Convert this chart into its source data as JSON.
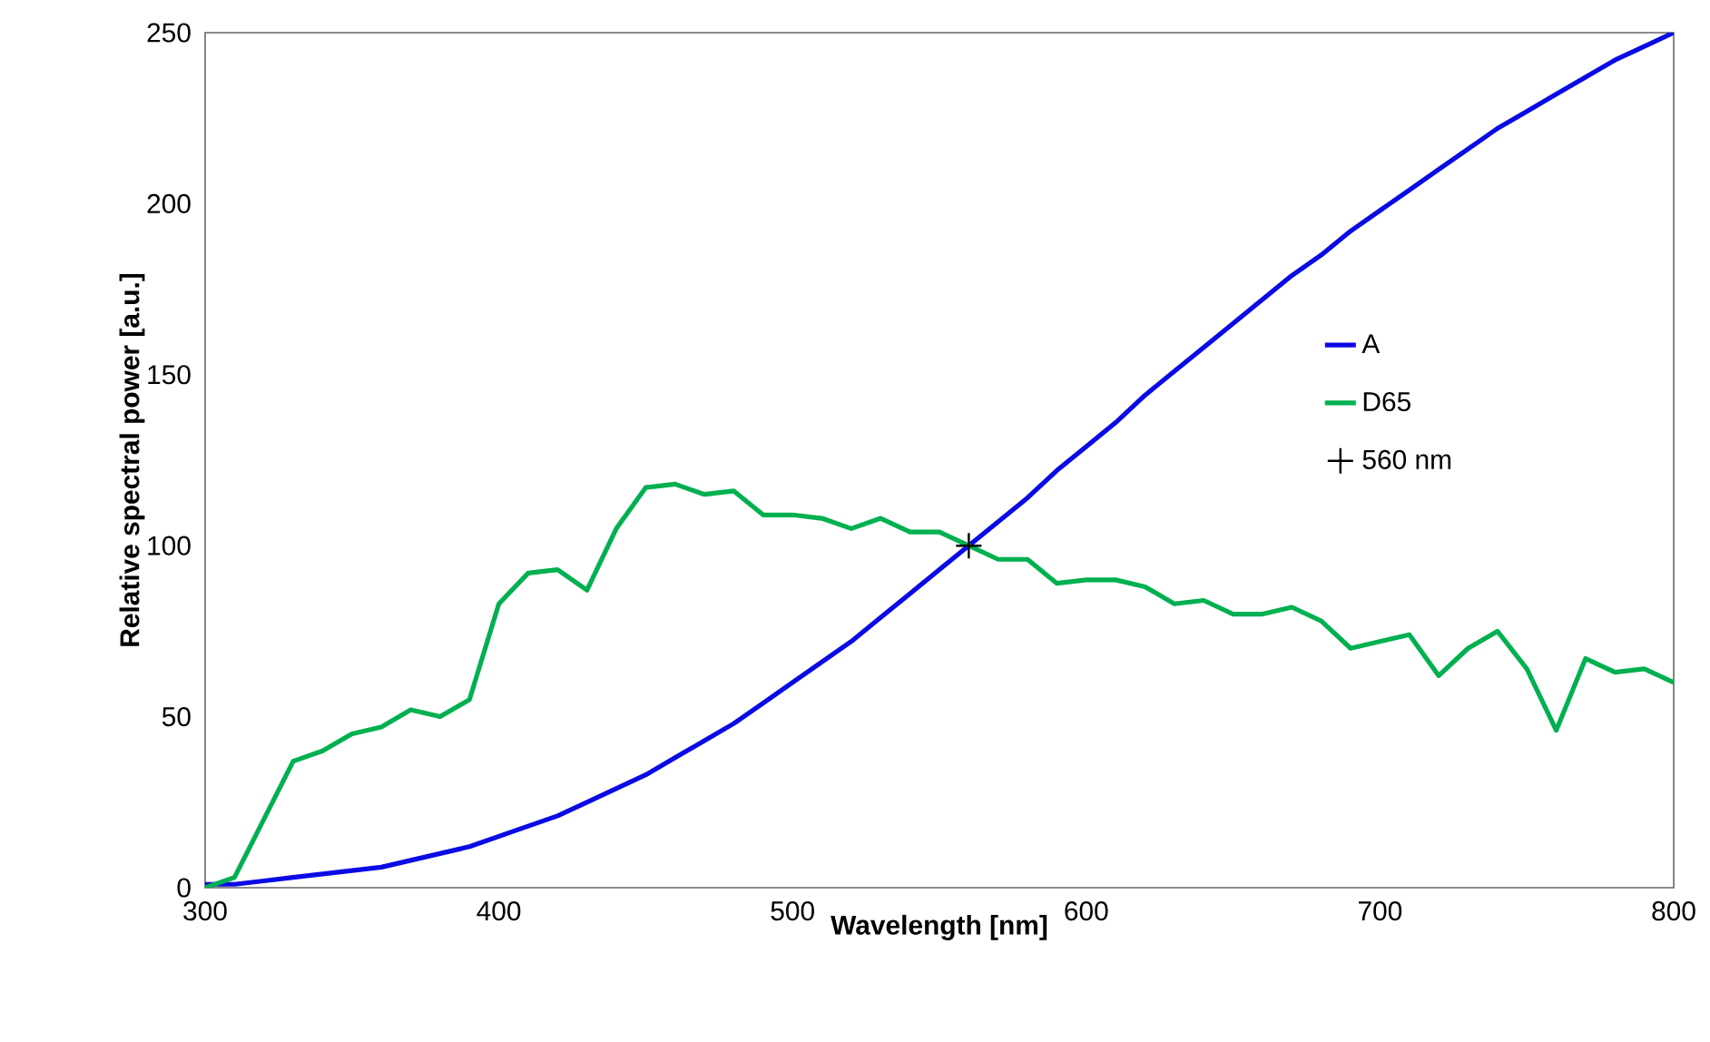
{
  "chart_data": {
    "type": "line",
    "xlabel": "Wavelength [nm]",
    "ylabel": "Relative spectral power [a.u.]",
    "xlim": [
      300,
      800
    ],
    "ylim": [
      0,
      250
    ],
    "xticks": [
      300,
      400,
      500,
      600,
      700,
      800
    ],
    "yticks": [
      0,
      50,
      100,
      150,
      200,
      250
    ],
    "grid": false,
    "legend": "right",
    "marker": "none",
    "line_style": "solid",
    "x": [
      300,
      310,
      320,
      330,
      340,
      350,
      360,
      370,
      380,
      390,
      400,
      410,
      420,
      430,
      440,
      450,
      460,
      470,
      480,
      490,
      500,
      510,
      520,
      530,
      540,
      550,
      560,
      570,
      580,
      590,
      600,
      610,
      620,
      630,
      640,
      650,
      660,
      670,
      680,
      690,
      700,
      710,
      720,
      730,
      740,
      750,
      760,
      770,
      780,
      790,
      800
    ],
    "series": [
      {
        "name": "A",
        "color": "#0a0ae6",
        "values": [
          1,
          1,
          2,
          3,
          4,
          5,
          6,
          8,
          10,
          12,
          15,
          18,
          21,
          25,
          29,
          33,
          38,
          43,
          48,
          54,
          60,
          66,
          72,
          79,
          86,
          93,
          100,
          107,
          114,
          122,
          129,
          136,
          144,
          151,
          158,
          165,
          172,
          179,
          185,
          192,
          198,
          204,
          210,
          216,
          222,
          227,
          232,
          237,
          242,
          246,
          250
        ]
      },
      {
        "name": "D65",
        "color": "#00b050",
        "values": [
          0,
          3,
          20,
          37,
          40,
          45,
          47,
          52,
          50,
          55,
          83,
          92,
          93,
          87,
          105,
          117,
          118,
          115,
          116,
          109,
          109,
          108,
          105,
          108,
          104,
          104,
          100,
          96,
          96,
          89,
          90,
          90,
          88,
          83,
          84,
          80,
          80,
          82,
          78,
          70,
          72,
          74,
          62,
          70,
          75,
          64,
          46,
          67,
          63,
          64,
          60
        ]
      },
      {
        "name": "560 nm",
        "type": "scatter",
        "marker": "cross",
        "color": "#000000",
        "x": [
          560
        ],
        "values": [
          100
        ]
      }
    ]
  }
}
